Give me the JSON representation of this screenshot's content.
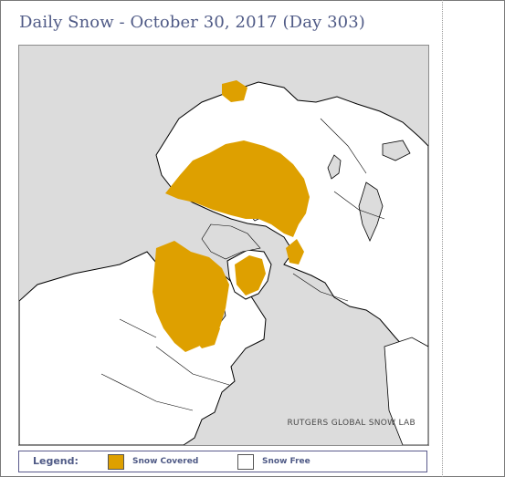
{
  "page": {
    "title": "Daily Snow - October 30, 2017 (Day 303)"
  },
  "map": {
    "credit": "RUTGERS GLOBAL SNOW LAB",
    "colors": {
      "ocean": "#dcdcdc",
      "land": "#ffffff",
      "snow_covered": "#dea000",
      "sea_ice": "#dcdcdc",
      "coastline": "#000000"
    }
  },
  "legend": {
    "title": "Legend:",
    "items": [
      {
        "label": "Snow Covered",
        "color": "#dea000"
      },
      {
        "label": "Snow Free",
        "color": "#ffffff"
      }
    ]
  }
}
